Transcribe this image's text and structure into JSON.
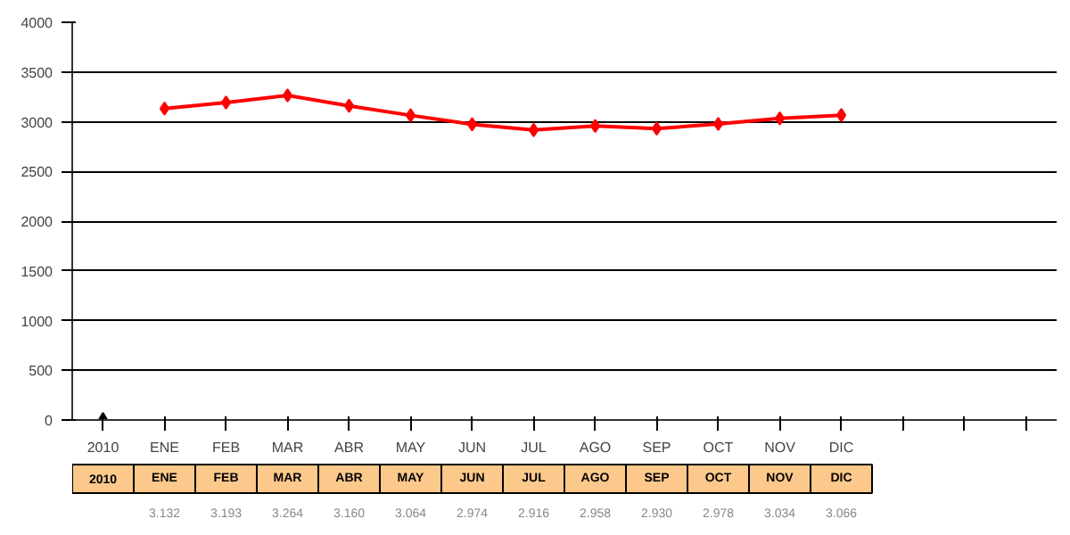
{
  "chart_data": {
    "type": "line",
    "categories": [
      "2010",
      "ENE",
      "FEB",
      "MAR",
      "ABR",
      "MAY",
      "JUN",
      "JUL",
      "AGO",
      "SEP",
      "OCT",
      "NOV",
      "DIC",
      null,
      null,
      null
    ],
    "series": [
      {
        "color": "#ff0000",
        "marker": "diamond",
        "values": [
          null,
          3132,
          3193,
          3264,
          3160,
          3064,
          2974,
          2916,
          2958,
          2930,
          2978,
          3034,
          3066,
          null,
          null,
          null
        ],
        "value_labels": [
          null,
          "3.132",
          "3.193",
          "3.264",
          "3.160",
          "3.064",
          "2.974",
          "2.916",
          "2.958",
          "2.930",
          "2.978",
          "3.034",
          "3.066",
          null,
          null,
          null
        ]
      },
      {
        "type": "scatter",
        "color": "#000000",
        "marker": "triangle",
        "values": [
          0,
          null,
          null,
          null,
          null,
          null,
          null,
          null,
          null,
          null,
          null,
          null,
          null,
          null,
          null,
          null
        ]
      }
    ],
    "ylim": [
      0,
      4000
    ],
    "yticks": [
      0,
      500,
      1000,
      1500,
      2000,
      2500,
      3000,
      3500,
      4000
    ],
    "grid": "y"
  }
}
